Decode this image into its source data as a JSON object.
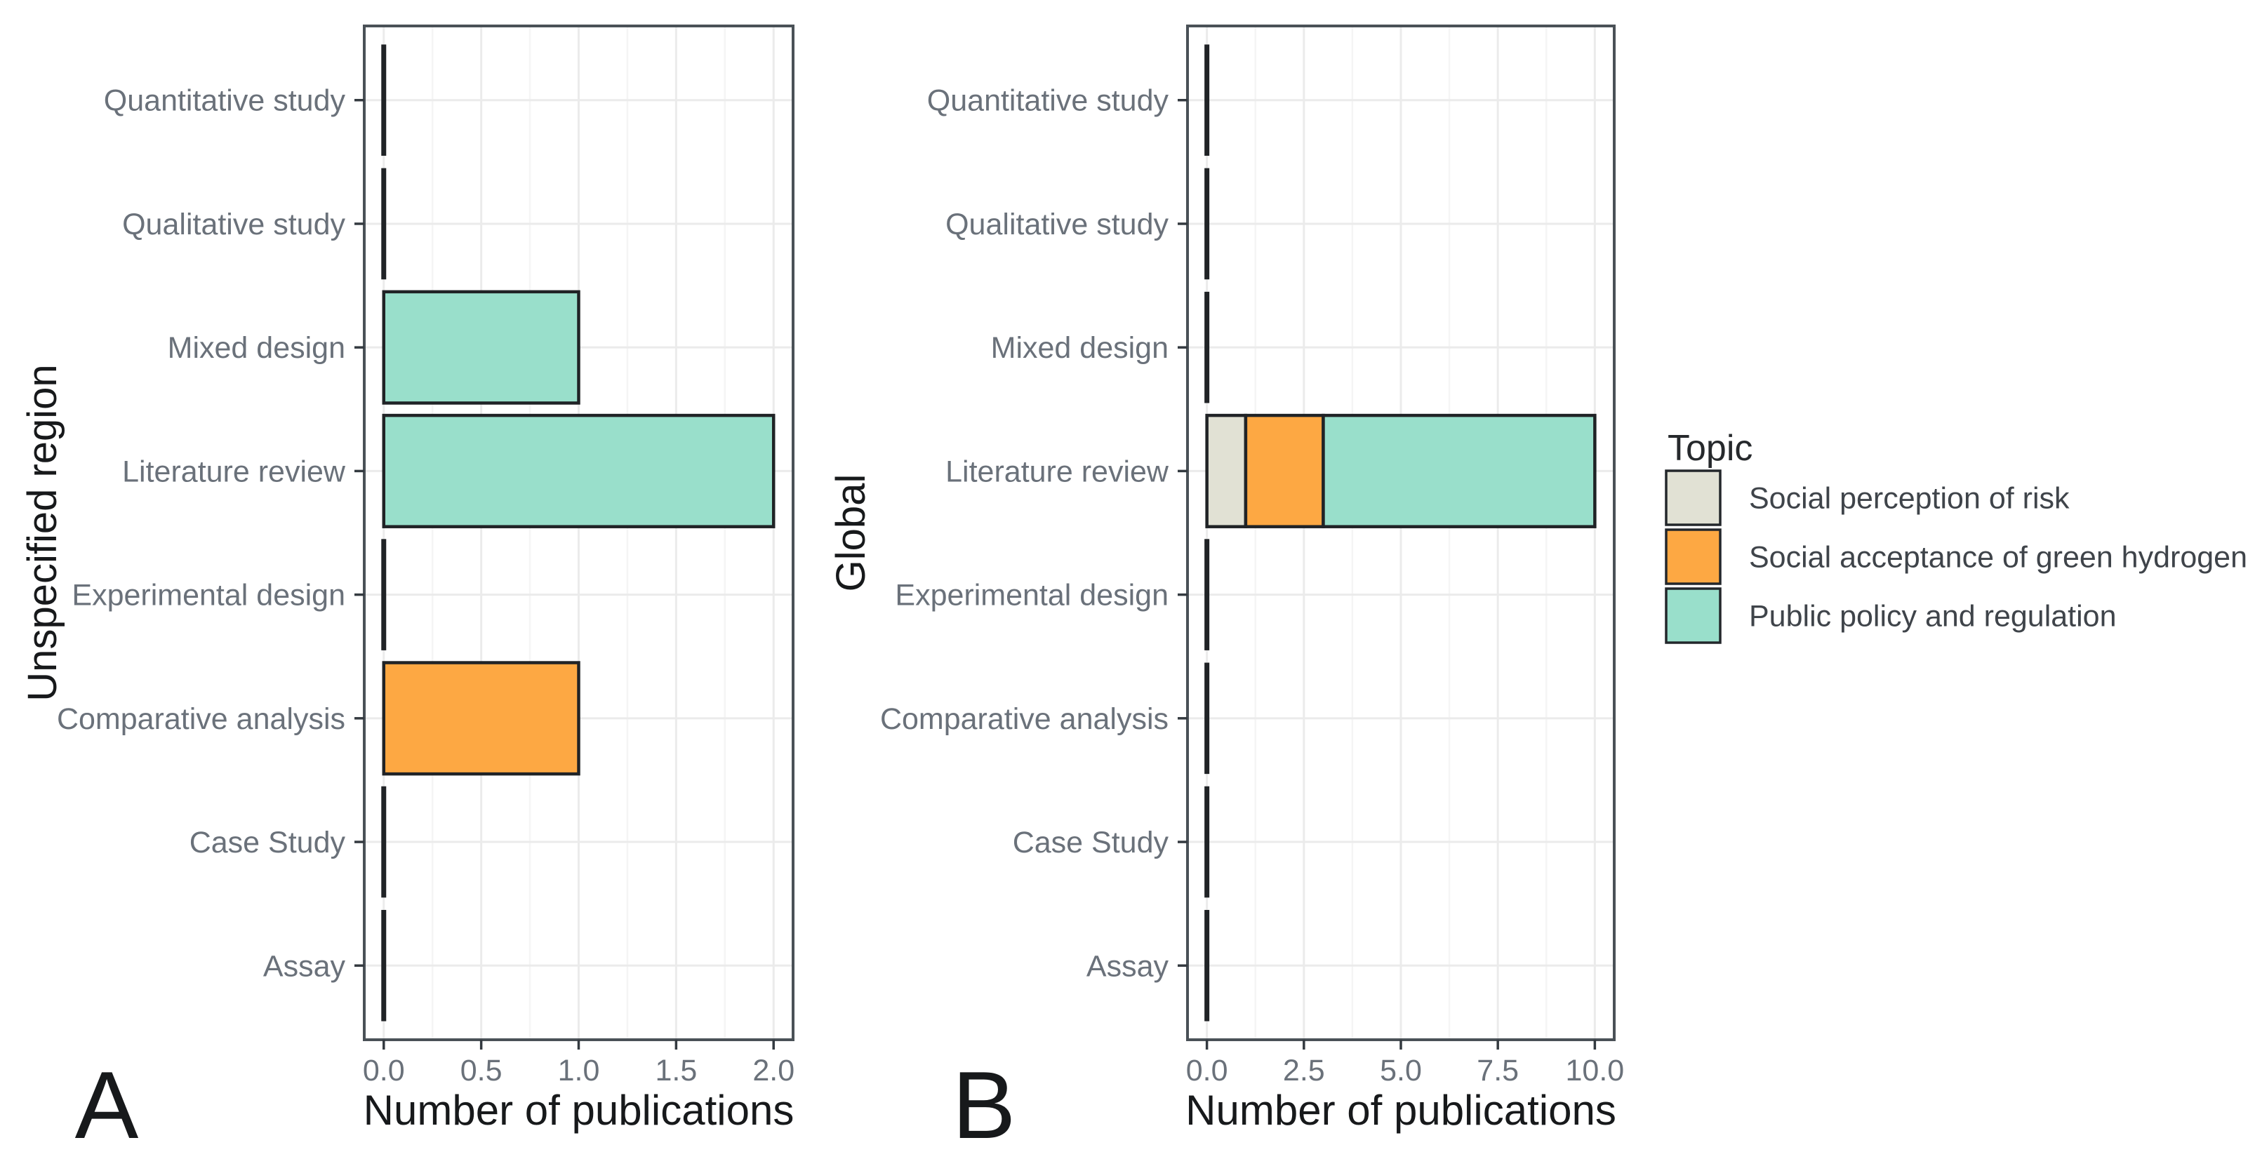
{
  "legend": {
    "title": "Topic",
    "items": [
      {
        "label": "Social perception of risk",
        "color": "#e1e1d4"
      },
      {
        "label": "Social acceptance of green hydrogen",
        "color": "#fda843"
      },
      {
        "label": "Public policy and regulation",
        "color": "#99dfcb"
      }
    ]
  },
  "chart_data": [
    {
      "type": "bar",
      "orientation": "horizontal",
      "stacked": true,
      "panel_label": "A",
      "panel_y_title": "Unspecified region",
      "xlabel": "Number of publications",
      "categories": [
        "Quantitative study",
        "Qualitative study",
        "Mixed design",
        "Literature review",
        "Experimental design",
        "Comparative analysis",
        "Case Study",
        "Assay"
      ],
      "series": [
        {
          "name": "Social perception of risk",
          "color": "#e1e1d4",
          "values": [
            0,
            0,
            0,
            0,
            0,
            0,
            0,
            0
          ]
        },
        {
          "name": "Social acceptance of green hydrogen",
          "color": "#fda843",
          "values": [
            0,
            0,
            0,
            0,
            0,
            1,
            0,
            0
          ]
        },
        {
          "name": "Public policy and regulation",
          "color": "#99dfcb",
          "values": [
            0,
            0,
            1,
            2,
            0,
            0,
            0,
            0
          ]
        }
      ],
      "xlim": [
        0,
        2
      ],
      "x_ticks": [
        0,
        0.5,
        1,
        1.5,
        2
      ],
      "x_tick_labels": [
        "0.0",
        "0.5",
        "1.0",
        "1.5",
        "2.0"
      ],
      "grid": "major-and-minor",
      "legend_position": "right"
    },
    {
      "type": "bar",
      "orientation": "horizontal",
      "stacked": true,
      "panel_label": "B",
      "panel_y_title": "Global",
      "xlabel": "Number of publications",
      "categories": [
        "Quantitative study",
        "Qualitative study",
        "Mixed design",
        "Literature review",
        "Experimental design",
        "Comparative analysis",
        "Case Study",
        "Assay"
      ],
      "series": [
        {
          "name": "Social perception of risk",
          "color": "#e1e1d4",
          "values": [
            0,
            0,
            0,
            1,
            0,
            0,
            0,
            0
          ]
        },
        {
          "name": "Social acceptance of green hydrogen",
          "color": "#fda843",
          "values": [
            0,
            0,
            0,
            2,
            0,
            0,
            0,
            0
          ]
        },
        {
          "name": "Public policy and regulation",
          "color": "#99dfcb",
          "values": [
            0,
            0,
            0,
            7,
            0,
            0,
            0,
            0
          ]
        }
      ],
      "xlim": [
        0,
        10
      ],
      "x_ticks": [
        0,
        2.5,
        5,
        7.5,
        10
      ],
      "x_tick_labels": [
        "0.0",
        "2.5",
        "5.0",
        "7.5",
        "10.0"
      ],
      "grid": "major-and-minor",
      "legend_position": "right"
    }
  ]
}
